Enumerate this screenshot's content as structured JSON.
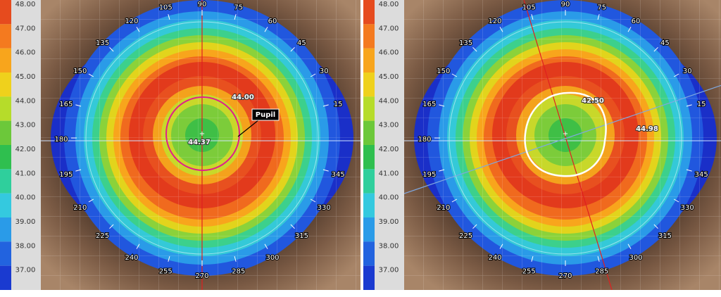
{
  "panels": [
    {
      "scale": [
        "48.00",
        "47.00",
        "46.00",
        "45.00",
        "44.00",
        "43.00",
        "42.00",
        "41.00",
        "40.00",
        "39.00",
        "38.00",
        "37.00"
      ],
      "angles": [
        90,
        75,
        60,
        45,
        30,
        15,
        345,
        330,
        315,
        300,
        285,
        270,
        255,
        240,
        225,
        210,
        195,
        180,
        165,
        150,
        135,
        120,
        105
      ],
      "annotations": [
        "44.00",
        "44.37"
      ],
      "pupil_label": "Pupil"
    },
    {
      "scale": [
        "48.00",
        "47.00",
        "46.00",
        "45.00",
        "44.00",
        "43.00",
        "42.00",
        "41.00",
        "40.00",
        "39.00",
        "38.00",
        "37.00"
      ],
      "angles": [
        90,
        75,
        60,
        45,
        30,
        15,
        345,
        330,
        315,
        300,
        285,
        270,
        255,
        240,
        225,
        210,
        195,
        180,
        165,
        150,
        135,
        120,
        105
      ],
      "annotations": [
        "42.50",
        "44.98"
      ]
    }
  ]
}
